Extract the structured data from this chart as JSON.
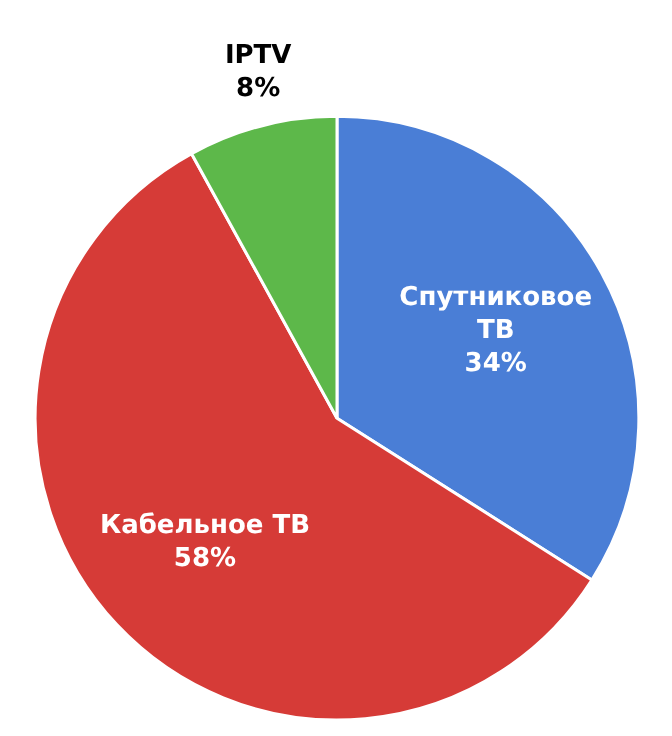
{
  "chart_data": {
    "type": "pie",
    "categories": [
      "Спутниковое ТВ",
      "Кабельное ТВ",
      "IPTV"
    ],
    "values": [
      34,
      58,
      8
    ],
    "colors": [
      "#4a7ed6",
      "#d63b37",
      "#5db84a"
    ],
    "value_labels": [
      "34%",
      "58%",
      "8%"
    ]
  }
}
